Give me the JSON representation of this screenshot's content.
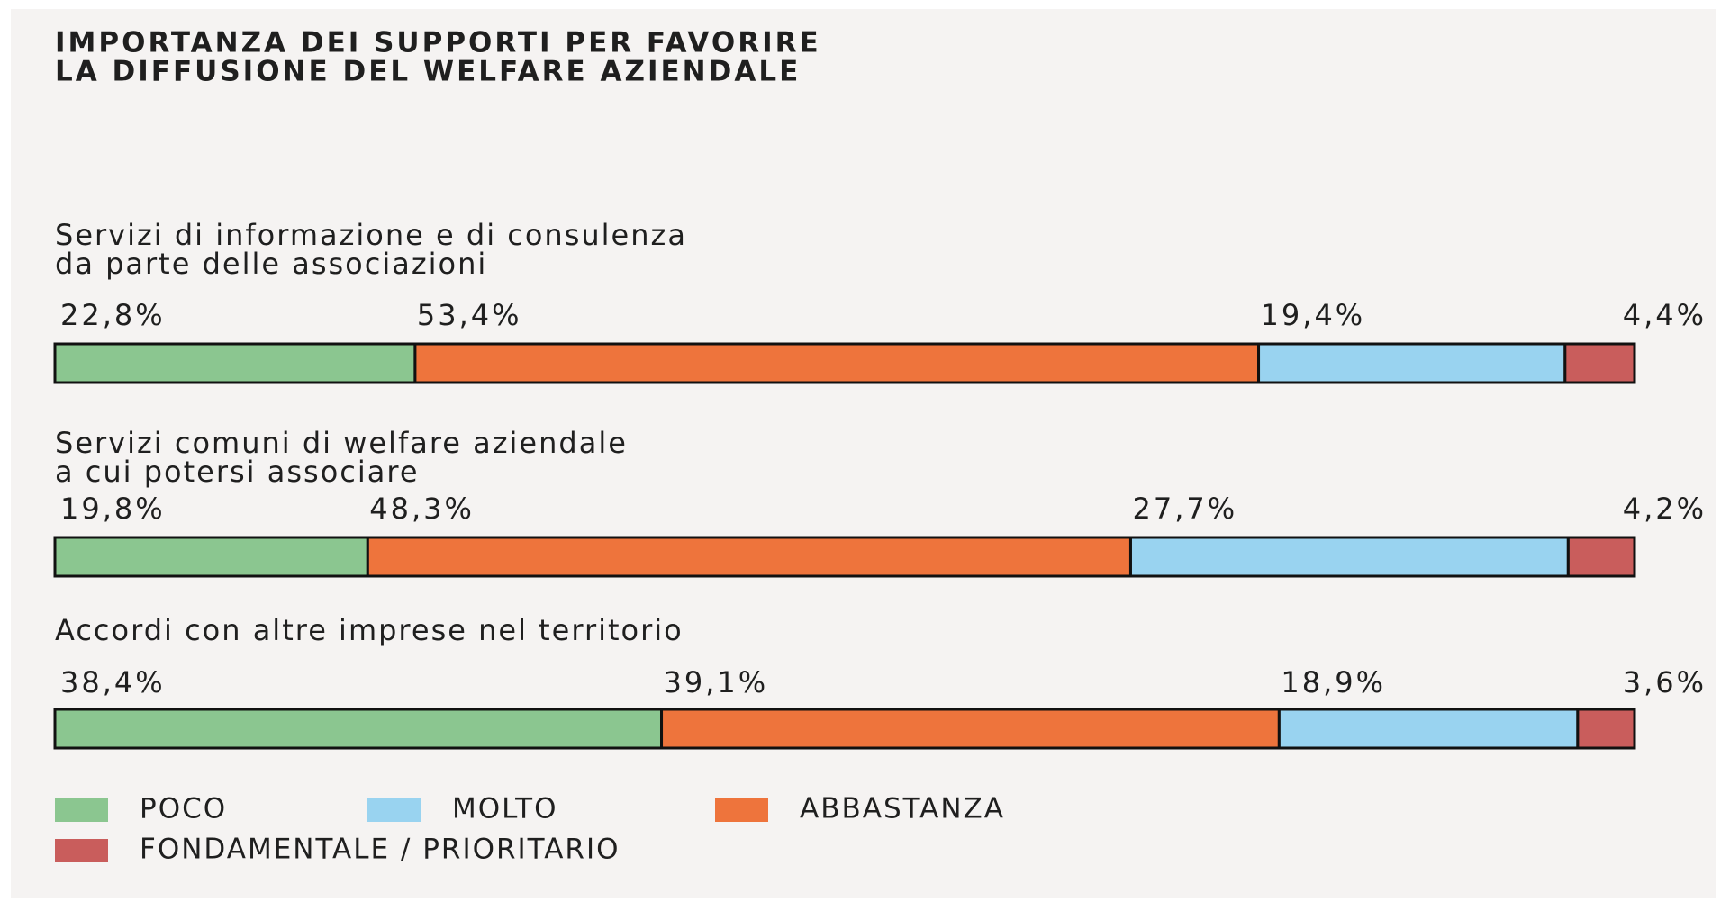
{
  "chart_data": {
    "type": "stacked_bar_horizontal",
    "title": [
      "IMPORTANZA DEI SUPPORTI PER FAVORIRE",
      "LA DIFFUSIONE DEL WELFARE AZIENDALE"
    ],
    "categories": [
      [
        "Servizi di informazione e di consulenza",
        "da parte delle associazioni"
      ],
      [
        "Servizi comuni di welfare aziendale",
        "a cui potersi associare"
      ],
      [
        "Accordi con altre imprese nel territorio"
      ]
    ],
    "series": [
      {
        "name": "POCO",
        "color": "#8bc690",
        "values": [
          22.8,
          19.8,
          38.4
        ],
        "value_labels": [
          "22,8%",
          "19,8%",
          "38,4%"
        ]
      },
      {
        "name": "ABBASTANZA",
        "color": "#ee743c",
        "values": [
          53.4,
          48.3,
          39.1
        ],
        "value_labels": [
          "53,4%",
          "48,3%",
          "39,1%"
        ]
      },
      {
        "name": "MOLTO",
        "color": "#99d3f0",
        "values": [
          19.4,
          27.7,
          18.9
        ],
        "value_labels": [
          "19,4%",
          "27,7%",
          "18,9%"
        ]
      },
      {
        "name": "FONDAMENTALE / PRIORITARIO",
        "color": "#c95d5c",
        "values": [
          4.4,
          4.2,
          3.6
        ],
        "value_labels": [
          "4,4%",
          "4,2%",
          "3,6%"
        ]
      }
    ]
  }
}
